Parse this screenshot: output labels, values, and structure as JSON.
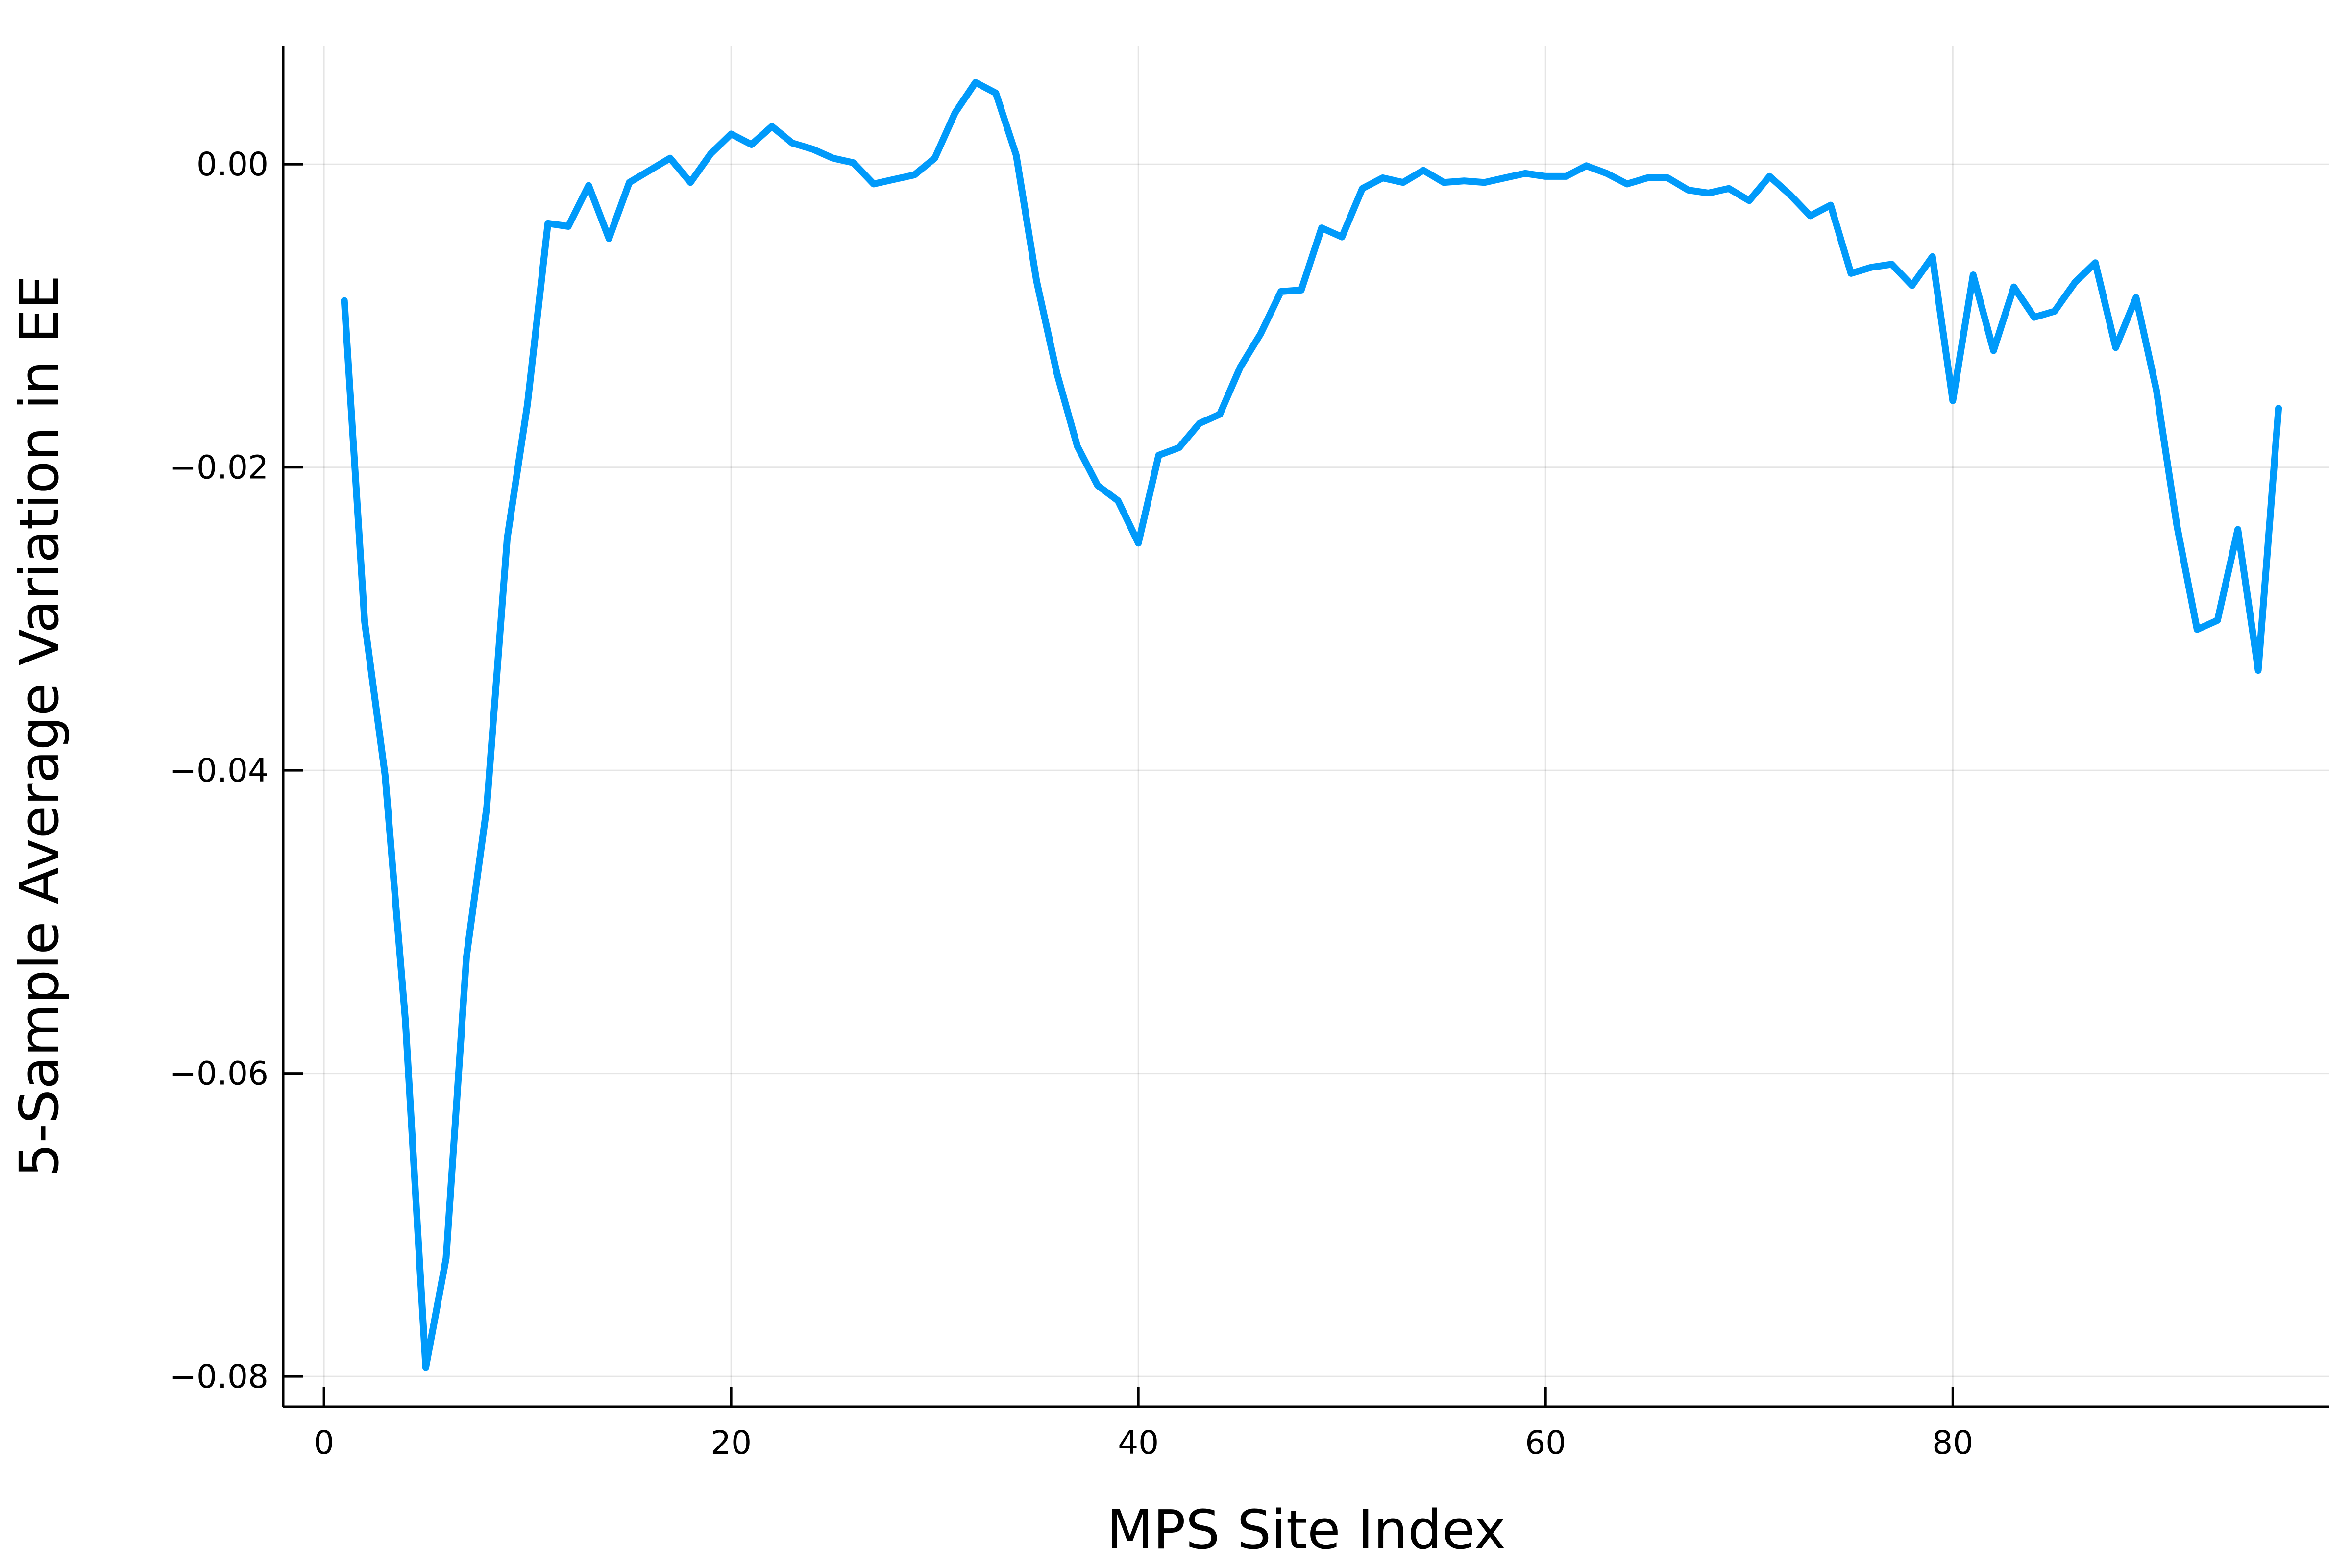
{
  "chart_data": {
    "type": "line",
    "title": "",
    "xlabel": "MPS Site Index",
    "ylabel": "5-Sample Average Variation in EE",
    "xlim": [
      -2,
      98.5
    ],
    "ylim": [
      -0.082,
      0.0078
    ],
    "xticks": [
      0,
      20,
      40,
      60,
      80
    ],
    "xtick_labels": [
      "0",
      "20",
      "40",
      "60",
      "80"
    ],
    "yticks": [
      0.0,
      -0.02,
      -0.04,
      -0.06,
      -0.08
    ],
    "ytick_labels": [
      "0.00",
      "−0.02",
      "−0.04",
      "−0.06",
      "−0.08"
    ],
    "grid": true,
    "legend": "none",
    "series": [
      {
        "color": "#009AFA",
        "x": [
          1,
          2,
          3,
          4,
          5,
          6,
          7,
          8,
          9,
          10,
          11,
          12,
          13,
          14,
          15,
          16,
          17,
          18,
          19,
          20,
          21,
          22,
          23,
          24,
          25,
          26,
          27,
          28,
          29,
          30,
          31,
          32,
          33,
          34,
          35,
          36,
          37,
          38,
          39,
          40,
          41,
          42,
          43,
          44,
          45,
          46,
          47,
          48,
          49,
          50,
          51,
          52,
          53,
          54,
          55,
          56,
          57,
          58,
          59,
          60,
          61,
          62,
          63,
          64,
          65,
          66,
          67,
          68,
          69,
          70,
          71,
          72,
          73,
          74,
          75,
          76,
          77,
          78,
          79,
          80,
          81,
          82,
          83,
          84,
          85,
          86,
          87,
          88,
          89,
          90,
          91,
          92,
          93,
          94,
          95,
          96
        ],
        "y": [
          -0.009,
          -0.0302,
          -0.0403,
          -0.0565,
          -0.0794,
          -0.0722,
          -0.0523,
          -0.0424,
          -0.0247,
          -0.0158,
          -0.0039,
          -0.0041,
          -0.0014,
          -0.0049,
          -0.0012,
          -0.0004,
          0.0004,
          -0.0012,
          0.0007,
          0.002,
          0.0013,
          0.0025,
          0.0014,
          0.001,
          0.0004,
          0.0001,
          -0.0013,
          -0.001,
          -0.0007,
          0.0004,
          0.0034,
          0.0054,
          0.0047,
          0.0006,
          -0.0077,
          -0.0138,
          -0.0186,
          -0.0212,
          -0.0222,
          -0.025,
          -0.0192,
          -0.0187,
          -0.0171,
          -0.0165,
          -0.0134,
          -0.0112,
          -0.0084,
          -0.0083,
          -0.0042,
          -0.0048,
          -0.0016,
          -0.0009,
          -0.0012,
          -0.0004,
          -0.0012,
          -0.0011,
          -0.0012,
          -0.0009,
          -0.0006,
          -0.0008,
          -0.0008,
          -0.0001,
          -0.0006,
          -0.0013,
          -0.0009,
          -0.0009,
          -0.0017,
          -0.0019,
          -0.0016,
          -0.0024,
          -0.0008,
          -0.002,
          -0.0034,
          -0.0027,
          -0.0072,
          -0.0068,
          -0.0066,
          -0.008,
          -0.0061,
          -0.0156,
          -0.0073,
          -0.0123,
          -0.0081,
          -0.0101,
          -0.0097,
          -0.0078,
          -0.0065,
          -0.0121,
          -0.0088,
          -0.0149,
          -0.0238,
          -0.0307,
          -0.0301,
          -0.0241,
          -0.0334,
          -0.0161
        ]
      }
    ]
  }
}
